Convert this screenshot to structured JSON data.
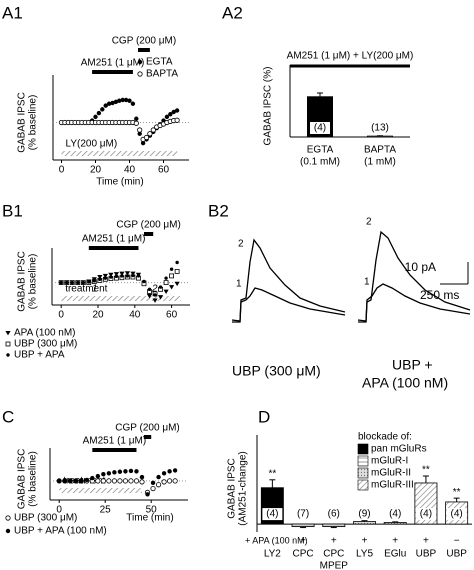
{
  "chart_data": [
    {
      "type": "scatter",
      "panel": "A1",
      "y_label": [
        "GABAB IPSC",
        "(% baseline)"
      ],
      "x_label": "Time (min)",
      "xlim": [
        -5,
        75
      ],
      "xticks": [
        0,
        20,
        40,
        60
      ],
      "ylim": [
        0,
        200
      ],
      "baseline": 100,
      "x": [
        0,
        2,
        4,
        6,
        8,
        10,
        12,
        14,
        16,
        18,
        20,
        22,
        24,
        26,
        28,
        30,
        32,
        34,
        36,
        38,
        40,
        42,
        44,
        46,
        48,
        50,
        52,
        54,
        56,
        58,
        60,
        62,
        64,
        66,
        68
      ],
      "series": [
        {
          "name": "EGTA",
          "color": "#000000",
          "marker": "circle-filled",
          "values": [
            100,
            100,
            100,
            100,
            100,
            100,
            100,
            100,
            100,
            105,
            115,
            125,
            135,
            145,
            150,
            152,
            155,
            158,
            160,
            160,
            158,
            150,
            110,
            70,
            45,
            55,
            65,
            75,
            85,
            95,
            105,
            115,
            122,
            128,
            132
          ]
        },
        {
          "name": "BAPTA",
          "color": "#000000",
          "marker": "circle-open",
          "values": [
            100,
            100,
            100,
            100,
            100,
            100,
            100,
            100,
            100,
            100,
            100,
            100,
            100,
            100,
            100,
            100,
            100,
            100,
            100,
            100,
            100,
            100,
            98,
            80,
            55,
            60,
            70,
            80,
            88,
            92,
            96,
            100,
            103,
            105,
            106
          ]
        }
      ],
      "bars": [
        {
          "label": "AM251 (1 μM)",
          "start": 18,
          "end": 42,
          "style": "solid"
        },
        {
          "label": "CGP (200 μM)",
          "start": 45,
          "end": 52,
          "style": "solid"
        },
        {
          "label": "LY(200 μM)",
          "start": 0,
          "end": 68,
          "style": "hatch"
        }
      ]
    },
    {
      "type": "bar",
      "panel": "A2",
      "y_label": [
        "GABAB IPSC (%)"
      ],
      "annotation": "AM251 (1 μM) + LY(200 μM)",
      "ylim": [
        0,
        200
      ],
      "categories": [
        "EGTA",
        "BAPTA"
      ],
      "sublabels": [
        "(0.1 mM)",
        "(1 mM)"
      ],
      "values": [
        130,
        3
      ],
      "errors": [
        12,
        1
      ],
      "n_labels": [
        "(4)",
        "(13)"
      ],
      "colors": [
        "#000000",
        "#ffffff"
      ]
    },
    {
      "type": "scatter",
      "panel": "B1",
      "y_label": [
        "GABAB IPSC",
        "(% baseline)"
      ],
      "xlim": [
        -5,
        70
      ],
      "xticks": [
        0,
        20,
        40,
        60
      ],
      "ylim": [
        0,
        210
      ],
      "baseline": 100,
      "x": [
        0,
        3,
        6,
        9,
        12,
        15,
        18,
        21,
        24,
        27,
        30,
        33,
        36,
        39,
        42,
        45,
        48,
        51,
        54,
        57,
        60,
        63
      ],
      "series": [
        {
          "name": "APA (100 nM)",
          "color": "#000000",
          "marker": "triangle-filled",
          "values": [
            100,
            100,
            100,
            100,
            100,
            105,
            115,
            125,
            130,
            135,
            138,
            140,
            142,
            140,
            135,
            100,
            40,
            20,
            35,
            60,
            80,
            95
          ]
        },
        {
          "name": "UBP (300 μM)",
          "color": "#000000",
          "marker": "square-open",
          "values": [
            100,
            100,
            100,
            100,
            100,
            100,
            105,
            110,
            115,
            118,
            120,
            122,
            125,
            125,
            120,
            95,
            60,
            50,
            70,
            100,
            130,
            150
          ]
        },
        {
          "name": "UBP + APA",
          "color": "#000000",
          "marker": "diamond-filled",
          "values": [
            100,
            100,
            100,
            100,
            100,
            103,
            108,
            115,
            120,
            125,
            128,
            130,
            130,
            132,
            130,
            105,
            70,
            45,
            80,
            120,
            160,
            190
          ]
        }
      ],
      "bars": [
        {
          "label": "AM251 (1 μM)",
          "start": 15,
          "end": 42,
          "style": "solid"
        },
        {
          "label": "CGP (200 μM)",
          "start": 45,
          "end": 50,
          "style": "solid"
        },
        {
          "label": "treatment",
          "start": 0,
          "end": 65,
          "style": "hatch"
        }
      ],
      "annotations": [
        "1",
        "2"
      ]
    },
    {
      "type": "traces",
      "panel": "B2",
      "trace_labels": [
        "2",
        "1",
        "2",
        "1"
      ],
      "scale_y": "10 pA",
      "scale_x": "250 ms",
      "caption_left": "UBP  (300 μM)",
      "caption_right": [
        "UBP +",
        "APA (100 nM)"
      ]
    },
    {
      "type": "scatter",
      "panel": "C",
      "y_label": [
        "GABAB IPSC",
        "(% baseline)"
      ],
      "x_label": "Time (min)",
      "xlim": [
        -5,
        70
      ],
      "xticks": [
        0,
        25,
        50
      ],
      "ylim": [
        0,
        220
      ],
      "baseline": 100,
      "x": [
        0,
        3,
        6,
        9,
        12,
        15,
        18,
        21,
        24,
        27,
        30,
        33,
        36,
        39,
        42,
        45,
        48,
        51,
        54,
        57,
        60,
        63
      ],
      "series": [
        {
          "name": "UBP (300 μM)",
          "color": "#000000",
          "marker": "circle-open",
          "values": [
            100,
            100,
            100,
            100,
            100,
            100,
            100,
            100,
            100,
            100,
            100,
            100,
            100,
            100,
            100,
            95,
            40,
            60,
            80,
            95,
            100,
            100
          ]
        },
        {
          "name": "UBP + APA (100 nM)",
          "color": "#000000",
          "marker": "circle-filled",
          "values": [
            100,
            100,
            100,
            100,
            100,
            105,
            115,
            125,
            135,
            140,
            145,
            148,
            150,
            152,
            150,
            120,
            30,
            90,
            120,
            140,
            150,
            155
          ]
        }
      ],
      "bars": [
        {
          "label": "AM251 (1 μM)",
          "start": 18,
          "end": 42,
          "style": "solid"
        },
        {
          "label": "CGP (200 μM)",
          "start": 46,
          "end": 50,
          "style": "solid"
        },
        {
          "label": "treatment",
          "start": 0,
          "end": 45,
          "style": "hatch"
        }
      ]
    },
    {
      "type": "bar",
      "panel": "D",
      "y_label": [
        "GABAB IPSC",
        "(AM251-change)"
      ],
      "ylim": [
        -25,
        250
      ],
      "categories": [
        "LY2",
        "CPC",
        "CPC",
        "LY5",
        "EGlu",
        "UBP",
        "UBP"
      ],
      "sublabels": [
        null,
        null,
        "MPEP",
        null,
        null,
        null,
        null
      ],
      "values": [
        115,
        -8,
        -8,
        8,
        5,
        130,
        70
      ],
      "errors": [
        25,
        3,
        3,
        3,
        2,
        22,
        12
      ],
      "n_labels": [
        "(4)",
        "(7)",
        "(6)",
        "(9)",
        "(4)",
        "(4)",
        "(4)"
      ],
      "stars": [
        "**",
        null,
        null,
        null,
        null,
        "**",
        "**"
      ],
      "groups": [
        0,
        1,
        1,
        2,
        2,
        3,
        3
      ],
      "apa_label": "+ APA (100 nM)",
      "apa_marks": [
        null,
        "+",
        "+",
        "+",
        "+",
        "+",
        "−"
      ],
      "legend_title": "blockade of:",
      "legend": [
        {
          "name": "pan mGluRs",
          "color": "#000000"
        },
        {
          "name": "mGluR-I",
          "color": "pattern-1"
        },
        {
          "name": "mGluR-II",
          "color": "pattern-2"
        },
        {
          "name": "mGluR-III",
          "color": "pattern-3"
        }
      ]
    }
  ]
}
